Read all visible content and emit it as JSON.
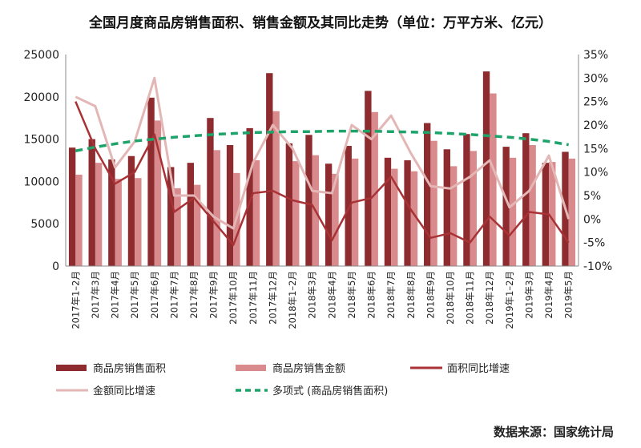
{
  "title": "全国月度商品房销售面积、销售金额及其同比走势（单位：万平方米、亿元）",
  "source": "数据来源：国家统计局",
  "colors": {
    "area_bar": "#8e2b2f",
    "amount_bar": "#d98a8c",
    "area_growth": "#a83236",
    "amount_growth": "#e3b7b6",
    "trend": "#1ea36a"
  },
  "chart_data": {
    "type": "bar",
    "categories": [
      "2017年1–2月",
      "2017年3月",
      "2017年4月",
      "2017年5月",
      "2017年6月",
      "2017年7月",
      "2017年8月",
      "2017年9月",
      "2017年10月",
      "2017年11月",
      "2017年12月",
      "2018年1–2月",
      "2018年3月",
      "2018年4月",
      "2018年5月",
      "2018年6月",
      "2018年7月",
      "2018年8月",
      "2018年9月",
      "2018年10月",
      "2018年11月",
      "2018年12月",
      "2019年1–2月",
      "2019年3月",
      "2019年4月",
      "2019年5月"
    ],
    "y_left": {
      "range": [
        0,
        25000
      ],
      "ticks": [
        "0",
        "5000",
        "10000",
        "15000",
        "20000",
        "25000"
      ]
    },
    "y_right": {
      "range": [
        -10,
        35
      ],
      "ticks": [
        "-10%",
        "-5%",
        "0%",
        "5%",
        "10%",
        "15%",
        "20%",
        "25%",
        "30%",
        "35%"
      ]
    },
    "series": [
      {
        "name": "商品房销售面积",
        "kind": "bar",
        "axis": "left",
        "values": [
          14000,
          15000,
          12600,
          13000,
          19900,
          11700,
          12200,
          17500,
          14300,
          16300,
          22800,
          14500,
          15500,
          12100,
          14200,
          20700,
          12800,
          12500,
          16900,
          13800,
          15600,
          23000,
          14100,
          15700,
          12200,
          13500
        ]
      },
      {
        "name": "商品房销售金额",
        "kind": "bar",
        "axis": "left",
        "values": [
          10800,
          12200,
          10300,
          10400,
          17200,
          9200,
          9600,
          13700,
          11000,
          12500,
          18300,
          12400,
          13100,
          10900,
          12700,
          18200,
          11500,
          11200,
          14800,
          11800,
          13600,
          20400,
          12800,
          14300,
          12300,
          12700
        ]
      },
      {
        "name": "面积同比增速",
        "kind": "line",
        "axis": "right",
        "values": [
          25,
          15,
          7.5,
          10,
          18,
          1.5,
          4.5,
          -0.5,
          -5.5,
          5.5,
          6,
          4,
          3,
          -4.5,
          3.5,
          4.5,
          9,
          2,
          -4,
          -3,
          -5,
          0.5,
          -3.5,
          1.5,
          1,
          -5
        ]
      },
      {
        "name": "金额同比增速",
        "kind": "line",
        "axis": "right",
        "values": [
          26,
          24,
          11,
          16.5,
          30,
          5,
          5,
          0.5,
          -2,
          12,
          20,
          15,
          6,
          5.5,
          20,
          17,
          22,
          14,
          7,
          6.5,
          9,
          12.5,
          2.5,
          6,
          13.5,
          0
        ]
      },
      {
        "name": "多项式 (商品房销售面积)",
        "kind": "trend",
        "axis": "right",
        "values": [
          14.5,
          15.3,
          16,
          16.6,
          17,
          17.4,
          17.7,
          18,
          18.2,
          18.4,
          18.5,
          18.6,
          18.6,
          18.7,
          18.7,
          18.7,
          18.6,
          18.5,
          18.4,
          18.2,
          18,
          17.7,
          17.4,
          17,
          16.5,
          15.8
        ]
      }
    ],
    "legend": {
      "placement": "bottom"
    }
  }
}
